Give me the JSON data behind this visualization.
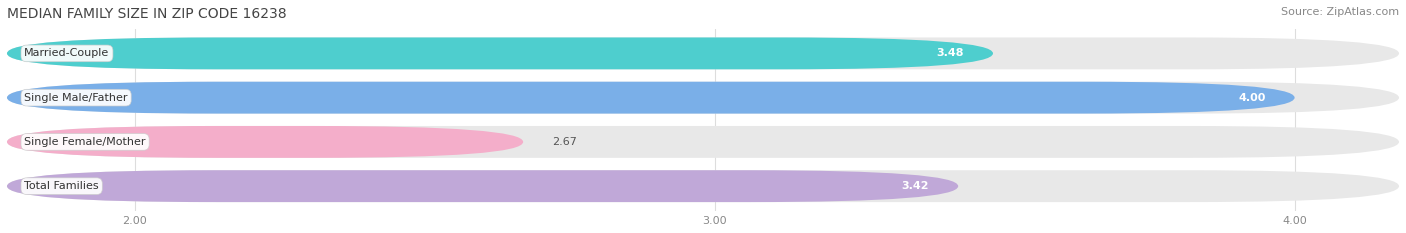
{
  "title": "MEDIAN FAMILY SIZE IN ZIP CODE 16238",
  "source": "Source: ZipAtlas.com",
  "categories": [
    "Married-Couple",
    "Single Male/Father",
    "Single Female/Mother",
    "Total Families"
  ],
  "values": [
    3.48,
    4.0,
    2.67,
    3.42
  ],
  "bar_colors": [
    "#4ECECE",
    "#7AAFE8",
    "#F4AECA",
    "#C0A8D8"
  ],
  "bar_background_colors": [
    "#EEEEEE",
    "#EEEEEE",
    "#EEEEEE",
    "#EEEEEE"
  ],
  "label_colors": [
    "white",
    "white",
    "#888888",
    "white"
  ],
  "xmin": 1.78,
  "xmax": 4.18,
  "xlim_left": 1.78,
  "xlim_right": 4.18,
  "xticks": [
    2.0,
    3.0,
    4.0
  ],
  "xtick_labels": [
    "2.00",
    "3.00",
    "4.00"
  ],
  "bar_height": 0.72,
  "figsize": [
    14.06,
    2.33
  ],
  "dpi": 100,
  "title_fontsize": 10,
  "label_fontsize": 8,
  "value_fontsize": 8,
  "tick_fontsize": 8,
  "source_fontsize": 8,
  "background_color": "#FFFFFF",
  "grid_color": "#DDDDDD"
}
